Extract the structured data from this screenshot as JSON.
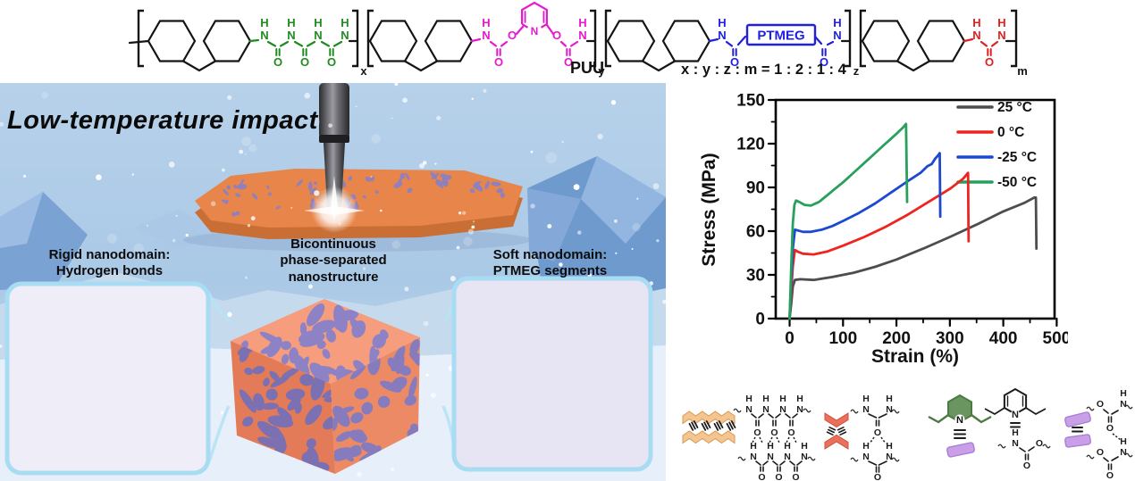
{
  "header": {
    "polymer_label": "PUU",
    "ratio_label": "x : y : z : m = 1 : 2 : 1 : 4",
    "ptmeg_box_label": "PTMEG",
    "subscripts": {
      "x": "x",
      "y": "y",
      "z": "z",
      "m": "m"
    }
  },
  "chemistry": {
    "atom_n": "N",
    "atom_h": "H",
    "atom_o": "O"
  },
  "scene": {
    "title": "Low-temperature impact",
    "labels": {
      "rigid": [
        "Rigid nanodomain:",
        "Hydrogen bonds"
      ],
      "middle": [
        "Bicontinuous",
        "phase-separated",
        "nanostructure"
      ],
      "soft": [
        "Soft nanodomain:",
        "PTMEG segments"
      ]
    }
  },
  "colors": {
    "structure_green": "#1e8c1e",
    "structure_magenta": "#e818d0",
    "structure_blue": "#2020e0",
    "structure_red": "#e02020",
    "cube_orange": "#f0926f",
    "cube_purple": "#8d80c4",
    "panel_border": "#a8dcf2"
  },
  "chart_data": {
    "type": "line",
    "title": "",
    "xlabel": "Strain (%)",
    "ylabel": "Stress (MPa)",
    "xlim": [
      -26,
      496
    ],
    "ylim": [
      0,
      150
    ],
    "xticks": [
      0,
      100,
      200,
      300,
      400,
      500
    ],
    "yticks": [
      0,
      30,
      60,
      90,
      120,
      150
    ],
    "grid": false,
    "legend_position": "top-right",
    "series": [
      {
        "name": "25 °C",
        "color": "#4d4d4d",
        "points": [
          [
            0,
            0
          ],
          [
            3,
            10
          ],
          [
            6,
            22
          ],
          [
            10,
            26.5
          ],
          [
            20,
            27
          ],
          [
            45,
            26.5
          ],
          [
            80,
            28.5
          ],
          [
            120,
            31.5
          ],
          [
            160,
            35.5
          ],
          [
            200,
            40.5
          ],
          [
            250,
            48
          ],
          [
            300,
            56
          ],
          [
            350,
            64.5
          ],
          [
            400,
            73.5
          ],
          [
            440,
            79.5
          ],
          [
            458,
            83
          ],
          [
            461,
            83
          ],
          [
            462,
            48
          ]
        ]
      },
      {
        "name": "0 °C",
        "color": "#ee2420",
        "points": [
          [
            0,
            0
          ],
          [
            3,
            18
          ],
          [
            6,
            36
          ],
          [
            10,
            47
          ],
          [
            15,
            46
          ],
          [
            25,
            44.5
          ],
          [
            45,
            44
          ],
          [
            70,
            46
          ],
          [
            100,
            50
          ],
          [
            140,
            56
          ],
          [
            180,
            63
          ],
          [
            220,
            71
          ],
          [
            260,
            80
          ],
          [
            300,
            89
          ],
          [
            325,
            96
          ],
          [
            334,
            100
          ],
          [
            335,
            53
          ]
        ]
      },
      {
        "name": "-25 °C",
        "color": "#1d49d0",
        "points": [
          [
            0,
            0
          ],
          [
            3,
            25
          ],
          [
            6,
            48
          ],
          [
            10,
            61
          ],
          [
            15,
            60.5
          ],
          [
            25,
            59.5
          ],
          [
            40,
            59.5
          ],
          [
            60,
            61
          ],
          [
            80,
            63.5
          ],
          [
            100,
            67
          ],
          [
            130,
            72.5
          ],
          [
            160,
            79
          ],
          [
            190,
            86.5
          ],
          [
            220,
            94
          ],
          [
            245,
            100
          ],
          [
            258,
            104.5
          ],
          [
            266,
            106
          ],
          [
            272,
            109.5
          ],
          [
            278,
            112
          ],
          [
            281,
            113.5
          ],
          [
            282,
            70
          ]
        ]
      },
      {
        "name": "-50 °C",
        "color": "#28a05c",
        "points": [
          [
            0,
            0
          ],
          [
            3,
            35
          ],
          [
            6,
            65
          ],
          [
            9,
            78
          ],
          [
            12,
            81
          ],
          [
            18,
            80
          ],
          [
            28,
            78
          ],
          [
            40,
            77.5
          ],
          [
            55,
            80
          ],
          [
            70,
            84.5
          ],
          [
            85,
            89
          ],
          [
            100,
            93.5
          ],
          [
            115,
            98.5
          ],
          [
            130,
            103.5
          ],
          [
            145,
            108.5
          ],
          [
            160,
            113.5
          ],
          [
            175,
            118.5
          ],
          [
            190,
            123.5
          ],
          [
            202,
            127.5
          ],
          [
            212,
            131
          ],
          [
            218,
            133.5
          ],
          [
            220,
            80
          ]
        ]
      }
    ]
  }
}
